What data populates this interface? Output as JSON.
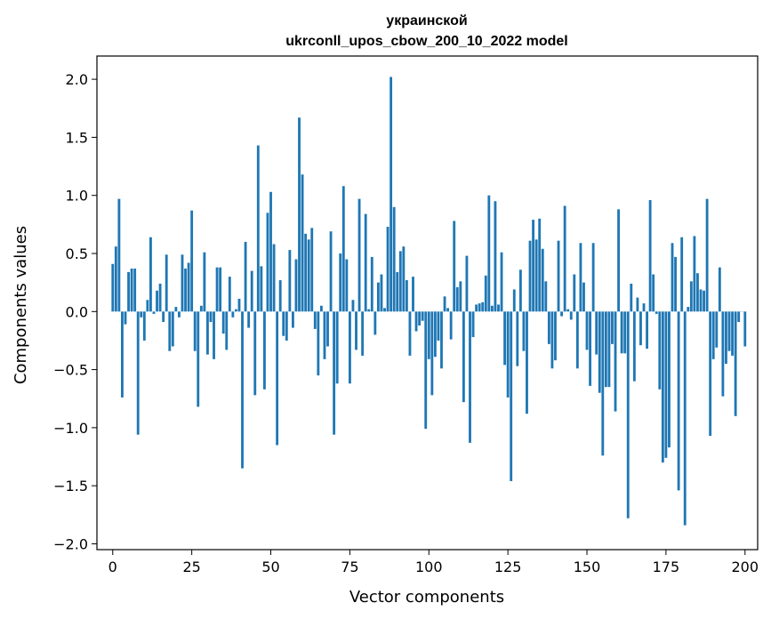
{
  "chart_data": {
    "type": "bar",
    "title_line1": "украинской",
    "title_line2": "ukrconll_upos_cbow_200_10_2022 model",
    "xlabel": "Vector components",
    "ylabel": "Components values",
    "xlim": [
      -5,
      204
    ],
    "ylim": [
      -2.05,
      2.2
    ],
    "xticks": [
      0,
      25,
      50,
      75,
      100,
      125,
      150,
      175,
      200
    ],
    "xtick_labels": [
      "0",
      "25",
      "50",
      "75",
      "100",
      "125",
      "150",
      "175",
      "200"
    ],
    "yticks": [
      2.0,
      1.5,
      1.0,
      0.5,
      0.0,
      -0.5,
      -1.0,
      -1.5,
      -2.0
    ],
    "ytick_labels": [
      "2.0",
      "1.5",
      "1.0",
      "0.5",
      "0.0",
      "−0.5",
      "−1.0",
      "−1.5",
      "−2.0"
    ],
    "bar_color": "#1f77b4",
    "values": [
      0.41,
      0.56,
      0.97,
      -0.74,
      -0.11,
      0.34,
      0.37,
      0.37,
      -1.06,
      -0.05,
      -0.25,
      0.1,
      0.64,
      -0.02,
      0.18,
      0.24,
      -0.09,
      0.49,
      -0.34,
      -0.3,
      0.04,
      -0.05,
      0.49,
      0.37,
      0.42,
      0.87,
      -0.34,
      -0.82,
      0.05,
      0.51,
      -0.37,
      -0.09,
      -0.41,
      0.38,
      0.38,
      -0.19,
      -0.33,
      0.3,
      -0.05,
      0.02,
      0.11,
      -1.35,
      0.6,
      -0.14,
      0.35,
      -0.72,
      1.43,
      0.39,
      -0.67,
      0.85,
      1.03,
      0.58,
      -1.15,
      0.27,
      -0.21,
      -0.25,
      0.53,
      -0.14,
      0.45,
      1.67,
      1.18,
      0.67,
      0.62,
      0.72,
      -0.15,
      -0.55,
      0.05,
      -0.41,
      -0.3,
      0.69,
      -1.06,
      -0.62,
      0.5,
      1.08,
      0.45,
      -0.62,
      0.1,
      -0.33,
      0.97,
      -0.38,
      0.84,
      0.02,
      0.47,
      -0.2,
      0.25,
      0.32,
      0.03,
      0.73,
      2.02,
      0.9,
      0.34,
      0.52,
      0.56,
      0.27,
      -0.38,
      0.3,
      -0.17,
      -0.12,
      -0.08,
      -1.01,
      -0.41,
      -0.72,
      -0.39,
      -0.25,
      -0.49,
      0.13,
      0.03,
      -0.24,
      0.78,
      0.21,
      0.26,
      -0.78,
      0.48,
      -1.13,
      -0.22,
      0.06,
      0.07,
      0.08,
      0.31,
      1.0,
      0.05,
      0.95,
      0.06,
      0.51,
      -0.46,
      -0.74,
      -1.46,
      0.19,
      -0.47,
      0.36,
      -0.34,
      -0.88,
      0.61,
      0.79,
      0.62,
      0.8,
      0.54,
      0.26,
      -0.28,
      -0.49,
      -0.42,
      0.61,
      -0.04,
      0.91,
      0.02,
      -0.07,
      0.32,
      -0.49,
      0.59,
      0.25,
      -0.33,
      -0.64,
      0.59,
      -0.37,
      -0.7,
      -1.24,
      -0.65,
      -0.65,
      -0.28,
      -0.86,
      0.88,
      -0.36,
      -0.36,
      -1.78,
      0.24,
      -0.6,
      0.12,
      -0.29,
      0.07,
      -0.32,
      0.96,
      0.32,
      -0.02,
      -0.67,
      -1.3,
      -1.26,
      -1.17,
      0.59,
      0.47,
      -1.54,
      0.64,
      -1.84,
      0.04,
      0.26,
      0.65,
      0.33,
      0.19,
      0.18,
      0.97,
      -1.07,
      -0.41,
      -0.31,
      0.38,
      -0.73,
      -0.45,
      -0.34,
      -0.38,
      -0.9,
      -0.09,
      0.0,
      -0.3
    ]
  }
}
